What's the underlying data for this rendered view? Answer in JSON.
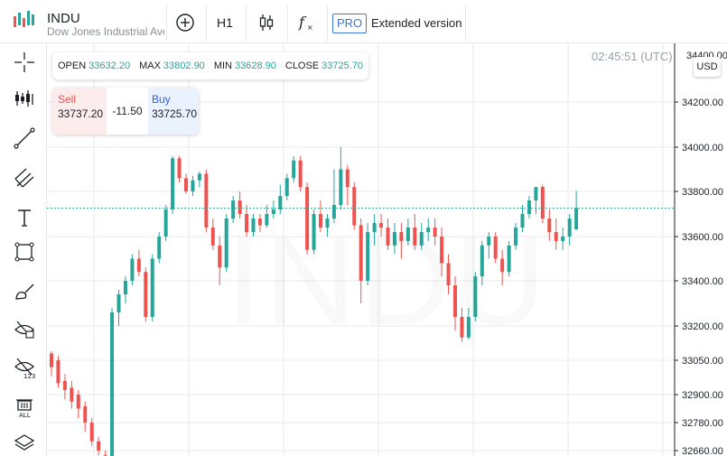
{
  "header": {
    "symbol": "INDU",
    "description": "Dow Jones Industrial Average",
    "timeframe": "H1",
    "pro_badge": "PRO",
    "extended_label": "Extended version"
  },
  "ohlc": {
    "open_label": "OPEN",
    "open": "33632.20",
    "max_label": "MAX",
    "max": "33802.90",
    "min_label": "MIN",
    "min": "33628.90",
    "close_label": "CLOSE",
    "close": "33725.70"
  },
  "trade": {
    "sell_label": "Sell",
    "sell_price": "33737.20",
    "spread": "-11.50",
    "buy_label": "Buy",
    "buy_price": "33725.70"
  },
  "clock": "02:45:51 (UTC)",
  "currency": "USD",
  "watermark": "INDU",
  "colors": {
    "up": "#26a69a",
    "down": "#ef5350",
    "grid": "#e6e8eb",
    "accent": "#3b78d6"
  },
  "left_tools": [
    {
      "name": "crosshair-icon"
    },
    {
      "name": "indicators-icon"
    },
    {
      "name": "trend-line-icon"
    },
    {
      "name": "pitchfork-icon"
    },
    {
      "name": "text-tool-icon"
    },
    {
      "name": "rectangle-icon"
    },
    {
      "name": "brush-icon"
    },
    {
      "name": "hide-drawings-icon"
    },
    {
      "name": "hide-labels-icon"
    },
    {
      "name": "delete-all-icon"
    },
    {
      "name": "layers-icon"
    }
  ],
  "chart_data": {
    "type": "candlestick",
    "y_axis_ticks": [
      "34200.00",
      "34000.00",
      "33800.00",
      "33600.00",
      "33400.00",
      "33200.00",
      "33050.00",
      "32900.00",
      "32780.00",
      "32660.00"
    ],
    "y_axis_top_label": "34400.00",
    "current_price_line": 33725.7,
    "candles": [
      [
        33080,
        33020,
        33090,
        32980
      ],
      [
        33050,
        32950,
        33070,
        32930
      ],
      [
        32960,
        32920,
        32990,
        32880
      ],
      [
        32930,
        32870,
        32960,
        32840
      ],
      [
        32900,
        32840,
        32920,
        32800
      ],
      [
        32850,
        32780,
        32870,
        32740
      ],
      [
        32780,
        32700,
        32800,
        32680
      ],
      [
        32700,
        32660,
        32720,
        32640
      ],
      [
        32640,
        32620,
        32660,
        32600
      ],
      [
        32560,
        33260,
        33280,
        32540
      ],
      [
        33260,
        33340,
        33360,
        33200
      ],
      [
        33340,
        33400,
        33420,
        33300
      ],
      [
        33400,
        33500,
        33520,
        33380
      ],
      [
        33500,
        33440,
        33540,
        33420
      ],
      [
        33440,
        33240,
        33460,
        33220
      ],
      [
        33240,
        33500,
        33520,
        33220
      ],
      [
        33500,
        33600,
        33620,
        33480
      ],
      [
        33600,
        33720,
        33740,
        33580
      ],
      [
        33720,
        33950,
        33960,
        33700
      ],
      [
        33950,
        33860,
        33960,
        33840
      ],
      [
        33860,
        33800,
        33880,
        33790
      ],
      [
        33800,
        33850,
        33870,
        33780
      ],
      [
        33850,
        33880,
        33890,
        33820
      ],
      [
        33880,
        33640,
        33900,
        33620
      ],
      [
        33640,
        33560,
        33680,
        33540
      ],
      [
        33560,
        33460,
        33600,
        33380
      ],
      [
        33460,
        33680,
        33700,
        33440
      ],
      [
        33680,
        33760,
        33780,
        33660
      ],
      [
        33760,
        33700,
        33800,
        33680
      ],
      [
        33700,
        33620,
        33740,
        33600
      ],
      [
        33620,
        33680,
        33700,
        33600
      ],
      [
        33680,
        33650,
        33700,
        33620
      ],
      [
        33650,
        33700,
        33740,
        33640
      ],
      [
        33700,
        33720,
        33760,
        33680
      ],
      [
        33720,
        33780,
        33830,
        33700
      ],
      [
        33780,
        33860,
        33880,
        33760
      ],
      [
        33860,
        33940,
        33960,
        33840
      ],
      [
        33940,
        33820,
        33960,
        33800
      ],
      [
        33820,
        33540,
        33840,
        33520
      ],
      [
        33540,
        33700,
        33720,
        33520
      ],
      [
        33700,
        33640,
        33760,
        33620
      ],
      [
        33640,
        33680,
        33700,
        33600
      ],
      [
        33680,
        33740,
        33900,
        33660
      ],
      [
        33740,
        33900,
        34000,
        33720
      ],
      [
        33900,
        33820,
        33920,
        33740
      ],
      [
        33820,
        33650,
        33840,
        33630
      ],
      [
        33650,
        33400,
        33680,
        33300
      ],
      [
        33400,
        33620,
        33660,
        33380
      ],
      [
        33620,
        33660,
        33700,
        33560
      ],
      [
        33660,
        33640,
        33700,
        33600
      ],
      [
        33640,
        33560,
        33680,
        33540
      ],
      [
        33560,
        33620,
        33660,
        33520
      ],
      [
        33620,
        33580,
        33660,
        33500
      ],
      [
        33580,
        33640,
        33680,
        33560
      ],
      [
        33640,
        33560,
        33700,
        33540
      ],
      [
        33560,
        33620,
        33660,
        33540
      ],
      [
        33620,
        33640,
        33680,
        33580
      ],
      [
        33640,
        33600,
        33680,
        33560
      ],
      [
        33600,
        33480,
        33640,
        33420
      ],
      [
        33480,
        33380,
        33520,
        33340
      ],
      [
        33380,
        33240,
        33420,
        33180
      ],
      [
        33240,
        33150,
        33280,
        33130
      ],
      [
        33150,
        33240,
        33280,
        33140
      ],
      [
        33240,
        33420,
        33440,
        33220
      ],
      [
        33420,
        33560,
        33580,
        33380
      ],
      [
        33560,
        33600,
        33620,
        33500
      ],
      [
        33600,
        33500,
        33620,
        33480
      ],
      [
        33500,
        33440,
        33540,
        33380
      ],
      [
        33440,
        33560,
        33580,
        33420
      ],
      [
        33560,
        33640,
        33660,
        33540
      ],
      [
        33640,
        33700,
        33740,
        33620
      ],
      [
        33700,
        33760,
        33780,
        33680
      ],
      [
        33760,
        33820,
        33820,
        33700
      ],
      [
        33820,
        33680,
        33830,
        33660
      ],
      [
        33680,
        33620,
        33720,
        33580
      ],
      [
        33620,
        33580,
        33680,
        33540
      ],
      [
        33580,
        33600,
        33640,
        33540
      ],
      [
        33600,
        33680,
        33700,
        33560
      ],
      [
        33632,
        33726,
        33803,
        33629
      ]
    ]
  }
}
